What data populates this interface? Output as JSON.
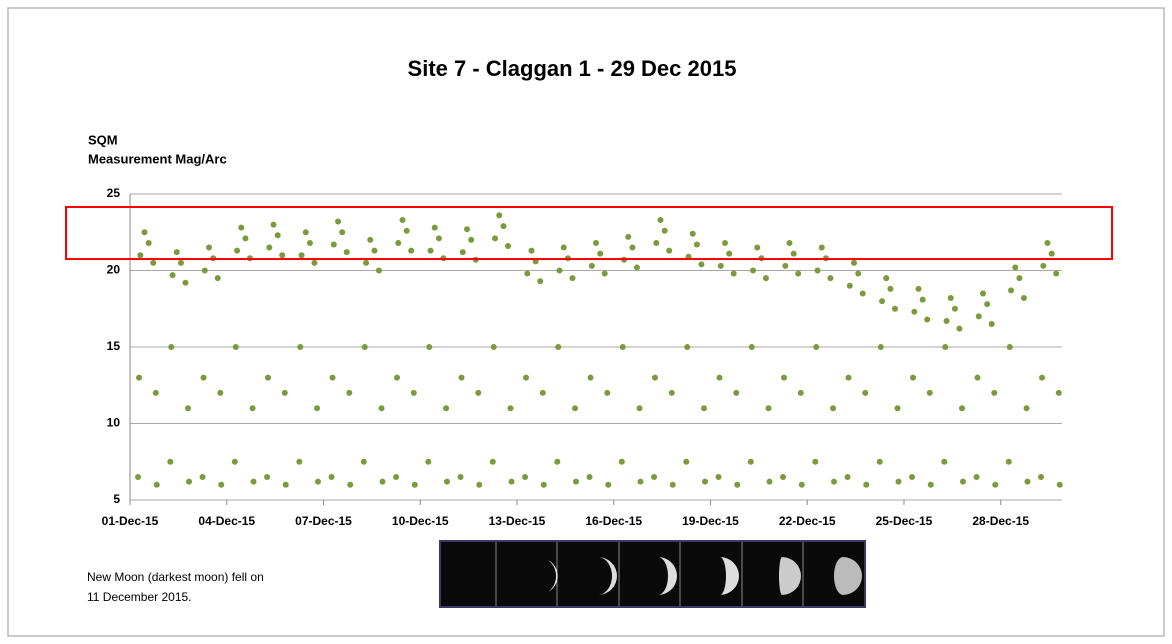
{
  "chart_data": {
    "type": "scatter",
    "title": "Site 7 - Claggan 1 - 29 Dec 2015",
    "y_label_lines": [
      "SQM",
      "Measurement Mag/Arc"
    ],
    "note_lines": [
      "New Moon (darkest moon) fell on",
      "11 December 2015."
    ],
    "color": "#7b9a3c",
    "highlight_color": "#ff0000",
    "highlight_ylim": [
      20.75,
      24.15
    ],
    "grid": true,
    "xlim": [
      0,
      28.9
    ],
    "ylim": [
      5,
      25
    ],
    "yticks": [
      5,
      10,
      15,
      20,
      25
    ],
    "xticks": [
      {
        "value": 0,
        "label": "01-Dec-15"
      },
      {
        "value": 3,
        "label": "04-Dec-15"
      },
      {
        "value": 6,
        "label": "07-Dec-15"
      },
      {
        "value": 9,
        "label": "10-Dec-15"
      },
      {
        "value": 12,
        "label": "13-Dec-15"
      },
      {
        "value": 15,
        "label": "16-Dec-15"
      },
      {
        "value": 18,
        "label": "19-Dec-15"
      },
      {
        "value": 21,
        "label": "22-Dec-15"
      },
      {
        "value": 24,
        "label": "25-Dec-15"
      },
      {
        "value": 27,
        "label": "28-Dec-15"
      }
    ],
    "x": [
      0.25,
      0.28,
      0.32,
      0.45,
      0.58,
      0.72,
      0.8,
      0.83,
      1.25,
      1.28,
      1.32,
      1.45,
      1.58,
      1.72,
      1.8,
      1.83,
      2.25,
      2.28,
      2.32,
      2.45,
      2.58,
      2.72,
      2.8,
      2.83,
      3.25,
      3.28,
      3.32,
      3.45,
      3.58,
      3.72,
      3.8,
      3.83,
      4.25,
      4.28,
      4.32,
      4.45,
      4.58,
      4.72,
      4.8,
      4.83,
      5.25,
      5.28,
      5.32,
      5.45,
      5.58,
      5.72,
      5.8,
      5.83,
      6.25,
      6.28,
      6.32,
      6.45,
      6.58,
      6.72,
      6.8,
      6.83,
      7.25,
      7.28,
      7.32,
      7.45,
      7.58,
      7.72,
      7.8,
      7.83,
      8.25,
      8.28,
      8.32,
      8.45,
      8.58,
      8.72,
      8.8,
      8.83,
      9.25,
      9.28,
      9.32,
      9.45,
      9.58,
      9.72,
      9.8,
      9.83,
      10.25,
      10.28,
      10.32,
      10.45,
      10.58,
      10.72,
      10.8,
      10.83,
      11.25,
      11.28,
      11.32,
      11.45,
      11.58,
      11.72,
      11.8,
      11.83,
      12.25,
      12.28,
      12.32,
      12.45,
      12.58,
      12.72,
      12.8,
      12.83,
      13.25,
      13.28,
      13.32,
      13.45,
      13.58,
      13.72,
      13.8,
      13.83,
      14.25,
      14.28,
      14.32,
      14.45,
      14.58,
      14.72,
      14.8,
      14.83,
      15.25,
      15.28,
      15.32,
      15.45,
      15.58,
      15.72,
      15.8,
      15.83,
      16.25,
      16.28,
      16.32,
      16.45,
      16.58,
      16.72,
      16.8,
      16.83,
      17.25,
      17.28,
      17.32,
      17.45,
      17.58,
      17.72,
      17.8,
      17.83,
      18.25,
      18.28,
      18.32,
      18.45,
      18.58,
      18.72,
      18.8,
      18.83,
      19.25,
      19.28,
      19.32,
      19.45,
      19.58,
      19.72,
      19.8,
      19.83,
      20.25,
      20.28,
      20.32,
      20.45,
      20.58,
      20.72,
      20.8,
      20.83,
      21.25,
      21.28,
      21.32,
      21.45,
      21.58,
      21.72,
      21.8,
      21.83,
      22.25,
      22.28,
      22.32,
      22.45,
      22.58,
      22.72,
      22.8,
      22.83,
      23.25,
      23.28,
      23.32,
      23.45,
      23.58,
      23.72,
      23.8,
      23.83,
      24.25,
      24.28,
      24.32,
      24.45,
      24.58,
      24.72,
      24.8,
      24.83,
      25.25,
      25.28,
      25.32,
      25.45,
      25.58,
      25.72,
      25.8,
      25.83,
      26.25,
      26.28,
      26.32,
      26.45,
      26.58,
      26.72,
      26.8,
      26.83,
      27.25,
      27.28,
      27.32,
      27.45,
      27.58,
      27.72,
      27.8,
      27.83,
      28.25,
      28.28,
      28.32,
      28.45,
      28.58,
      28.72,
      28.8,
      28.83
    ],
    "values": [
      6.5,
      13,
      21,
      22.5,
      21.8,
      20.5,
      12,
      6,
      7.5,
      15,
      19.7,
      21.2,
      20.5,
      19.2,
      11,
      6.2,
      6.5,
      13,
      20,
      21.5,
      20.8,
      19.5,
      12,
      6,
      7.5,
      15,
      21.3,
      22.8,
      22.1,
      20.8,
      11,
      6.2,
      6.5,
      13,
      21.5,
      23,
      22.3,
      21,
      12,
      6,
      7.5,
      15,
      21,
      22.5,
      21.8,
      20.5,
      11,
      6.2,
      6.5,
      13,
      21.7,
      23.2,
      22.5,
      21.2,
      12,
      6,
      7.5,
      15,
      20.5,
      22,
      21.3,
      20,
      11,
      6.2,
      6.5,
      13,
      21.8,
      23.3,
      22.6,
      21.3,
      12,
      6,
      7.5,
      15,
      21.3,
      22.8,
      22.1,
      20.8,
      11,
      6.2,
      6.5,
      13,
      21.2,
      22.7,
      22,
      20.7,
      12,
      6,
      7.5,
      15,
      22.1,
      23.6,
      22.9,
      21.6,
      11,
      6.2,
      6.5,
      13,
      19.8,
      21.3,
      20.6,
      19.3,
      12,
      6,
      7.5,
      15,
      20,
      21.5,
      20.8,
      19.5,
      11,
      6.2,
      6.5,
      13,
      20.3,
      21.8,
      21.1,
      19.8,
      12,
      6,
      7.5,
      15,
      20.7,
      22.2,
      21.5,
      20.2,
      11,
      6.2,
      6.5,
      13,
      21.8,
      23.3,
      22.6,
      21.3,
      12,
      6,
      7.5,
      15,
      20.9,
      22.4,
      21.7,
      20.4,
      11,
      6.2,
      6.5,
      13,
      20.3,
      21.8,
      21.1,
      19.8,
      12,
      6,
      7.5,
      15,
      20,
      21.5,
      20.8,
      19.5,
      11,
      6.2,
      6.5,
      13,
      20.3,
      21.8,
      21.1,
      19.8,
      12,
      6,
      7.5,
      15,
      20,
      21.5,
      20.8,
      19.5,
      11,
      6.2,
      6.5,
      13,
      19,
      20.5,
      19.8,
      18.5,
      12,
      6,
      7.5,
      15,
      18,
      19.5,
      18.8,
      17.5,
      11,
      6.2,
      6.5,
      13,
      17.3,
      18.8,
      18.1,
      16.8,
      12,
      6,
      7.5,
      15,
      16.7,
      18.2,
      17.5,
      16.2,
      11,
      6.2,
      6.5,
      13,
      17,
      18.5,
      17.8,
      16.5,
      12,
      6,
      7.5,
      15,
      18.7,
      20.2,
      19.5,
      18.2,
      11,
      6.2,
      6.5,
      13,
      20.3,
      21.8,
      21.1,
      19.8,
      12,
      6
    ]
  }
}
